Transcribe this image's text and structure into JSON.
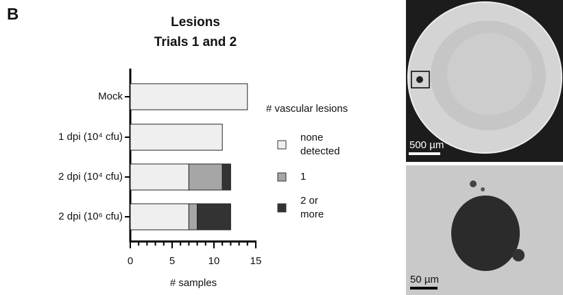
{
  "panel_label": "B",
  "chart_data": {
    "type": "stacked-barh",
    "title": [
      "Lesions",
      "Trials 1 and 2"
    ],
    "categories": [
      "Mock",
      "1 dpi (10⁴ cfu)",
      "2 dpi (10⁴ cfu)",
      "2 dpi (10⁶ cfu)"
    ],
    "series": [
      {
        "name": "none detected",
        "color": "#efefef",
        "values": [
          14,
          11,
          7,
          7
        ]
      },
      {
        "name": "1",
        "color": "#a6a6a6",
        "values": [
          0,
          0,
          4,
          1
        ]
      },
      {
        "name": "2 or more",
        "color": "#333333",
        "values": [
          0,
          0,
          1,
          4
        ]
      }
    ],
    "xlim": [
      0,
      15
    ],
    "xticks": [
      0,
      5,
      10,
      15
    ],
    "xminorticks": [
      1,
      2,
      3,
      4,
      6,
      7,
      8,
      9,
      11,
      12,
      13,
      14
    ],
    "xlabel": "# samples",
    "legend_title": "# vascular lesions"
  },
  "images": {
    "top_scale": "500 µm",
    "bottom_scale": "50 µm"
  }
}
